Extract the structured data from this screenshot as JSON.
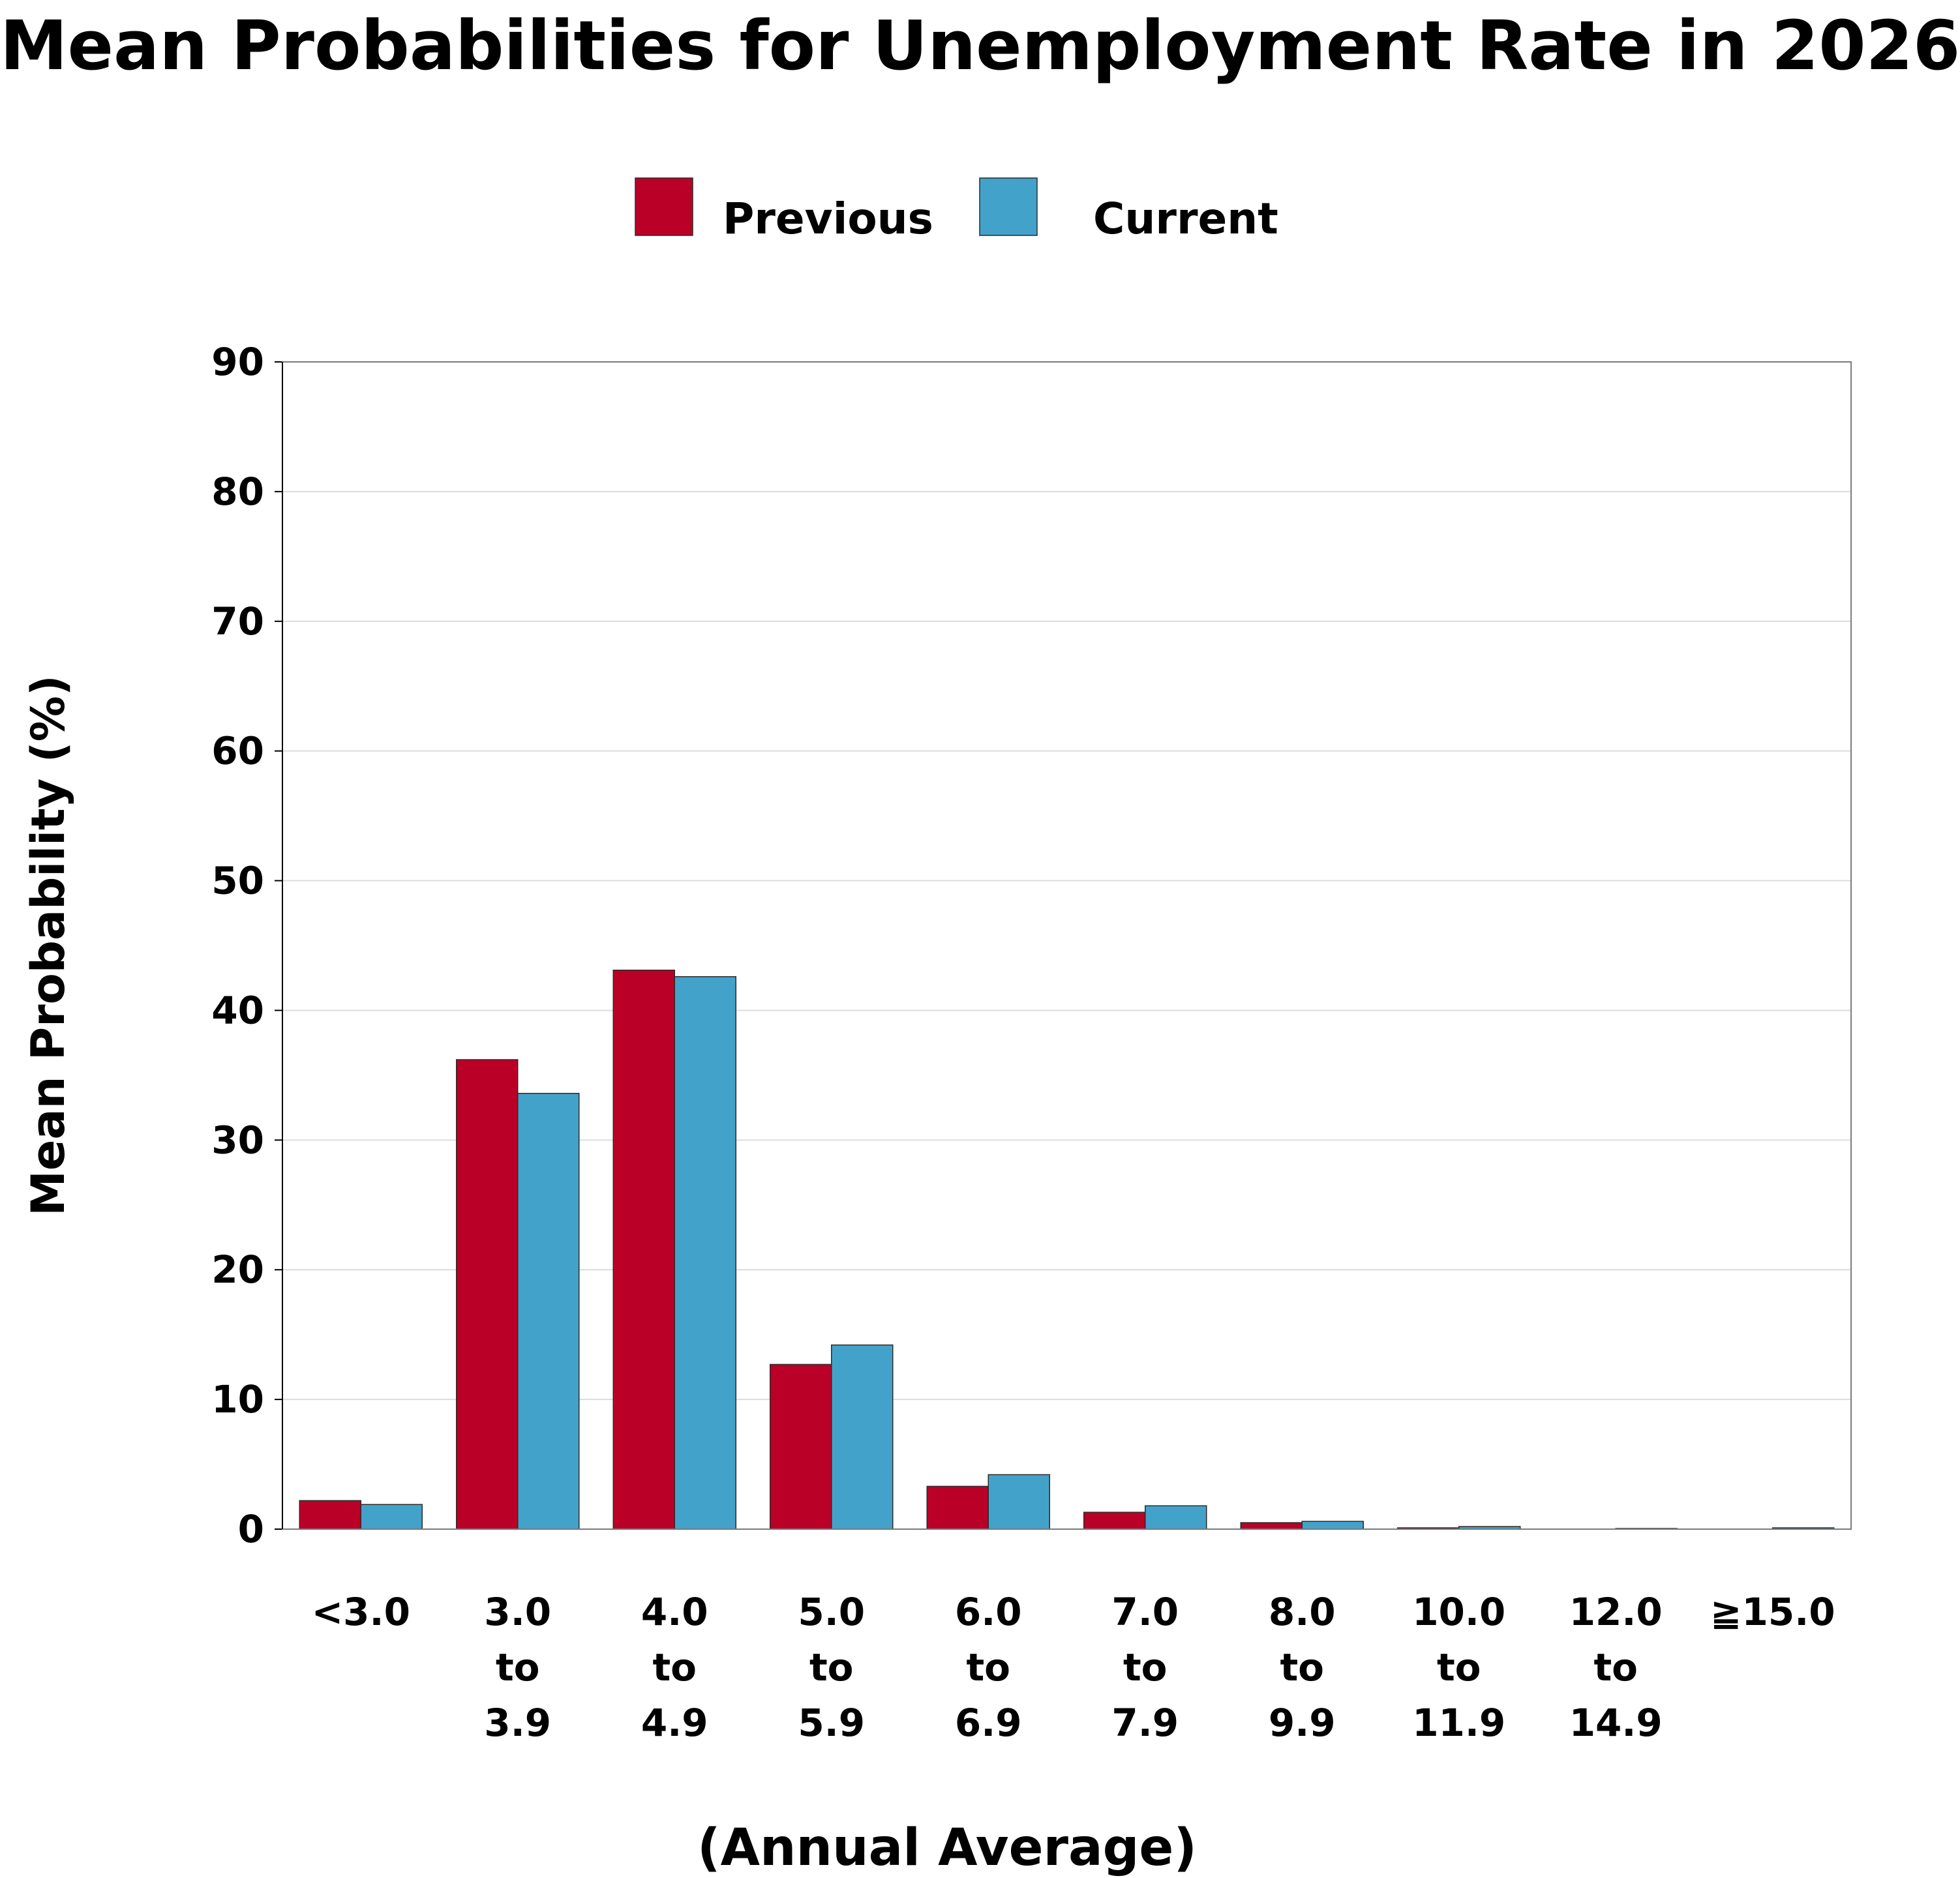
{
  "chart_data": {
    "type": "bar",
    "title": "Mean Probabilities for Unemployment Rate in 2026",
    "xlabel": "(Annual Average)",
    "ylabel": "Mean Probability (%)",
    "ylim": [
      0,
      90
    ],
    "yticks": [
      0,
      10,
      20,
      30,
      40,
      50,
      60,
      70,
      80,
      90
    ],
    "grid": true,
    "legend_position": "top-center",
    "categories": [
      [
        "<3.0"
      ],
      [
        "3.0",
        "to",
        "3.9"
      ],
      [
        "4.0",
        "to",
        "4.9"
      ],
      [
        "5.0",
        "to",
        "5.9"
      ],
      [
        "6.0",
        "to",
        "6.9"
      ],
      [
        "7.0",
        "to",
        "7.9"
      ],
      [
        "8.0",
        "to",
        "9.9"
      ],
      [
        "10.0",
        "to",
        "11.9"
      ],
      [
        "12.0",
        "to",
        "14.9"
      ],
      [
        "≧15.0"
      ]
    ],
    "series": [
      {
        "name": "Previous",
        "color": "#BA0027",
        "values": [
          2.2,
          36.2,
          43.1,
          12.7,
          3.3,
          1.3,
          0.5,
          0.1,
          0.0,
          0.0
        ]
      },
      {
        "name": "Current",
        "color": "#43A2CA",
        "values": [
          1.9,
          33.6,
          42.6,
          14.2,
          4.2,
          1.8,
          0.6,
          0.2,
          0.05,
          0.1
        ]
      }
    ]
  }
}
